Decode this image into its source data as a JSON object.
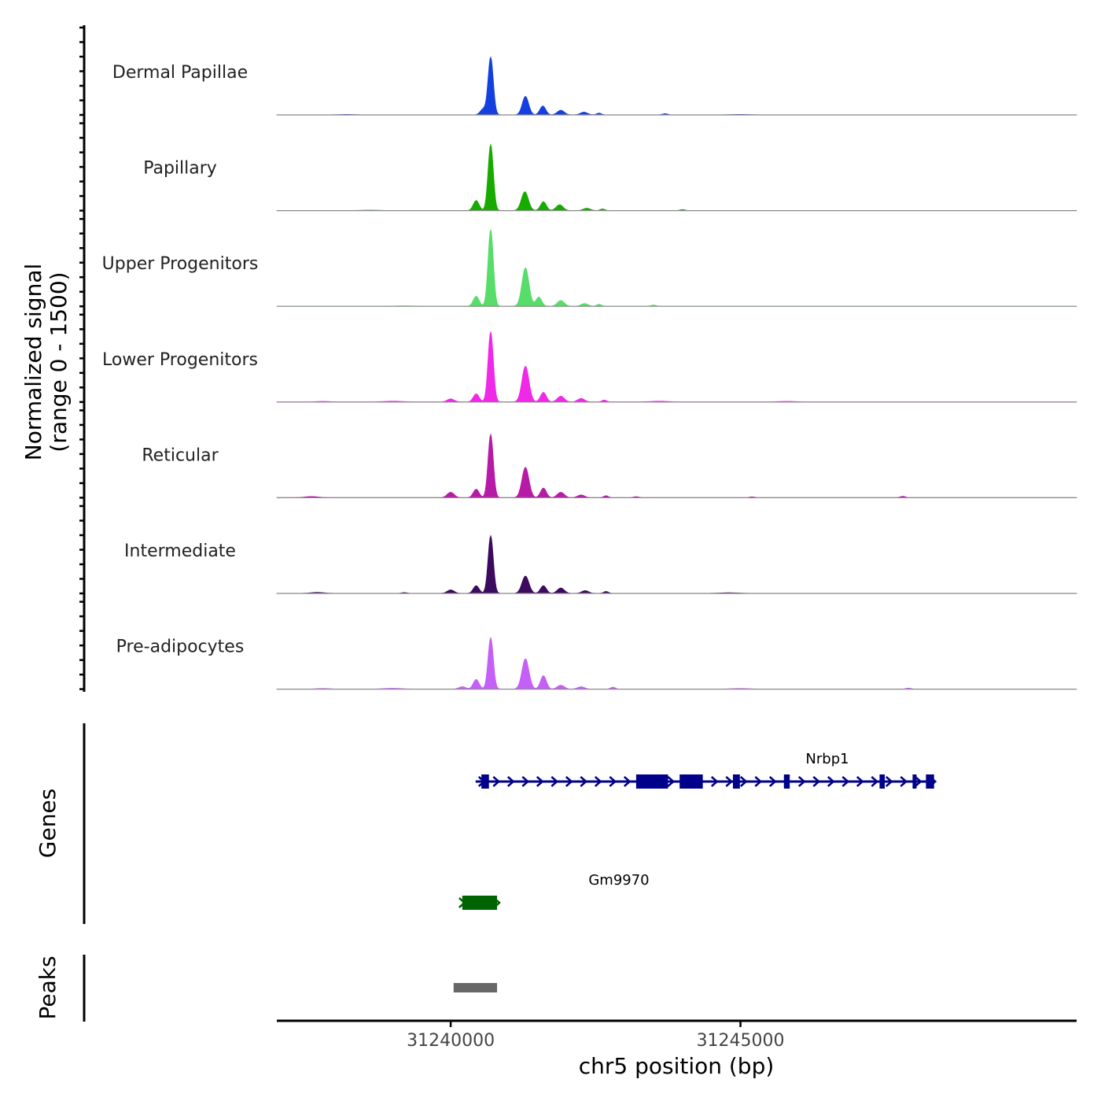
{
  "chart_data": {
    "type": "area",
    "title": "",
    "xlabel": "chr5 position (bp)",
    "ylabel": [
      "Normalized signal",
      "(range 0 - 1500)"
    ],
    "xlim": [
      31237000,
      31250800
    ],
    "ylim": [
      0,
      1500
    ],
    "x_ticks": [
      {
        "value": 31240000,
        "label": "31240000"
      },
      {
        "value": 31245000,
        "label": "31245000"
      }
    ],
    "tracks": [
      {
        "name": "Dermal Papillae",
        "color": "#1540e0",
        "peaks": [
          [
            31240690,
            1500,
            45
          ],
          [
            31241290,
            480,
            55
          ],
          [
            31240560,
            150,
            50
          ],
          [
            31241590,
            230,
            50
          ],
          [
            31241900,
            120,
            60
          ],
          [
            31242300,
            70,
            60
          ],
          [
            31242560,
            45,
            40
          ],
          [
            31243700,
            30,
            45
          ],
          [
            31238200,
            10,
            120
          ],
          [
            31245000,
            10,
            150
          ]
        ]
      },
      {
        "name": "Papillary",
        "color": "#17ab00",
        "peaks": [
          [
            31240690,
            1720,
            45
          ],
          [
            31241280,
            490,
            60
          ],
          [
            31240440,
            260,
            50
          ],
          [
            31241600,
            230,
            50
          ],
          [
            31241880,
            150,
            60
          ],
          [
            31242350,
            60,
            60
          ],
          [
            31242620,
            40,
            40
          ],
          [
            31244000,
            25,
            45
          ],
          [
            31238600,
            10,
            150
          ]
        ]
      },
      {
        "name": "Upper Progenitors",
        "color": "#58dc6a",
        "peaks": [
          [
            31240690,
            2000,
            45
          ],
          [
            31241290,
            1000,
            60
          ],
          [
            31240440,
            260,
            50
          ],
          [
            31241520,
            240,
            50
          ],
          [
            31241900,
            150,
            60
          ],
          [
            31242310,
            70,
            60
          ],
          [
            31242560,
            50,
            40
          ],
          [
            31243500,
            30,
            45
          ],
          [
            31239200,
            10,
            150
          ]
        ]
      },
      {
        "name": "Lower Progenitors",
        "color": "#f028e8",
        "peaks": [
          [
            31240690,
            1830,
            45
          ],
          [
            31241290,
            930,
            60
          ],
          [
            31240440,
            210,
            50
          ],
          [
            31241600,
            250,
            50
          ],
          [
            31240000,
            80,
            60
          ],
          [
            31241900,
            150,
            60
          ],
          [
            31242250,
            90,
            60
          ],
          [
            31242650,
            50,
            40
          ],
          [
            31237800,
            15,
            110
          ],
          [
            31239000,
            20,
            150
          ],
          [
            31243600,
            20,
            150
          ],
          [
            31245800,
            15,
            150
          ]
        ]
      },
      {
        "name": "Reticular",
        "color": "#b81aa8",
        "peaks": [
          [
            31240690,
            1650,
            45
          ],
          [
            31241290,
            790,
            60
          ],
          [
            31240440,
            220,
            50
          ],
          [
            31241600,
            250,
            50
          ],
          [
            31240000,
            140,
            60
          ],
          [
            31241900,
            140,
            60
          ],
          [
            31242250,
            70,
            60
          ],
          [
            31242680,
            50,
            40
          ],
          [
            31237600,
            30,
            110
          ],
          [
            31243200,
            25,
            45
          ],
          [
            31245200,
            20,
            45
          ],
          [
            31247800,
            35,
            45
          ]
        ]
      },
      {
        "name": "Intermediate",
        "color": "#3c0a5e",
        "peaks": [
          [
            31240690,
            1500,
            45
          ],
          [
            31241290,
            450,
            60
          ],
          [
            31240440,
            200,
            50
          ],
          [
            31241600,
            200,
            50
          ],
          [
            31240000,
            90,
            60
          ],
          [
            31241900,
            140,
            60
          ],
          [
            31242320,
            70,
            60
          ],
          [
            31242680,
            50,
            40
          ],
          [
            31237700,
            25,
            110
          ],
          [
            31239200,
            20,
            45
          ],
          [
            31244800,
            15,
            150
          ]
        ]
      },
      {
        "name": "Pre-adipocytes",
        "color": "#c460f5",
        "peaks": [
          [
            31240690,
            1340,
            45
          ],
          [
            31241290,
            790,
            60
          ],
          [
            31240440,
            250,
            50
          ],
          [
            31241600,
            350,
            50
          ],
          [
            31240200,
            60,
            60
          ],
          [
            31241900,
            100,
            60
          ],
          [
            31242250,
            60,
            60
          ],
          [
            31242800,
            50,
            40
          ],
          [
            31237800,
            15,
            110
          ],
          [
            31239000,
            20,
            150
          ],
          [
            31245000,
            15,
            150
          ],
          [
            31247900,
            25,
            45
          ]
        ]
      }
    ],
    "genes_track": {
      "label": "Genes",
      "genes": [
        {
          "name": "Nrbp1",
          "start": 31240430,
          "end": 31248200,
          "strand": "+",
          "color": "#00008b",
          "exons": [
            [
              31240530,
              31240660
            ],
            [
              31243200,
              31243750
            ],
            [
              31243950,
              31244350
            ],
            [
              31244870,
              31244990
            ],
            [
              31245750,
              31245850
            ],
            [
              31248250,
              31248340
            ],
            [
              31247400,
              31247490
            ],
            [
              31247970,
              31248010
            ],
            [
              31248200,
              31248300
            ]
          ]
        },
        {
          "name": "Gm9970",
          "start": 31240200,
          "end": 31240800,
          "strand": "+",
          "color": "#006400",
          "exons": [
            [
              31240200,
              31240800
            ]
          ]
        }
      ]
    },
    "peaks_track": {
      "label": "Peaks",
      "color": "#676767",
      "peaks": [
        [
          31240050,
          31240800
        ]
      ]
    }
  }
}
